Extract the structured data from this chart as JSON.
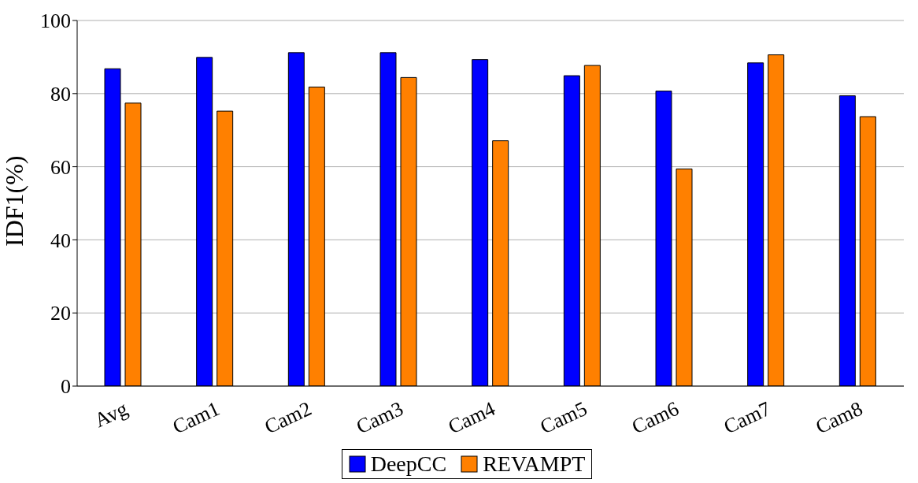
{
  "chart_data": {
    "type": "bar",
    "ylabel": "IDF1(%)",
    "categories": [
      "Avg",
      "Cam1",
      "Cam2",
      "Cam3",
      "Cam4",
      "Cam5",
      "Cam6",
      "Cam7",
      "Cam8"
    ],
    "series": [
      {
        "name": "DeepCC",
        "color": "#0000ff",
        "values": [
          86.8,
          89.9,
          91.2,
          91.2,
          89.3,
          84.9,
          80.7,
          88.4,
          79.4
        ]
      },
      {
        "name": "REVAMPT",
        "color": "#ff8000",
        "values": [
          77.4,
          75.2,
          81.8,
          84.4,
          67.1,
          87.7,
          59.4,
          90.6,
          73.7
        ]
      }
    ],
    "ylim": [
      0,
      100
    ],
    "yticks": [
      0,
      20,
      40,
      60,
      80,
      100
    ],
    "grid": "y",
    "legend": "bottom"
  }
}
